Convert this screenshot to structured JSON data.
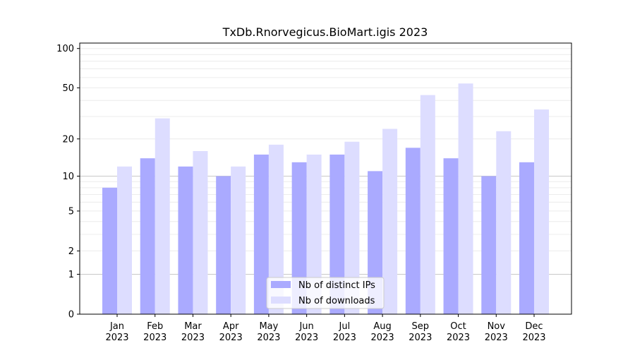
{
  "chart_data": {
    "type": "bar",
    "title": "TxDb.Rnorvegicus.BioMart.igis 2023",
    "categories": [
      [
        "Jan",
        "2023"
      ],
      [
        "Feb",
        "2023"
      ],
      [
        "Mar",
        "2023"
      ],
      [
        "Apr",
        "2023"
      ],
      [
        "May",
        "2023"
      ],
      [
        "Jun",
        "2023"
      ],
      [
        "Jul",
        "2023"
      ],
      [
        "Aug",
        "2023"
      ],
      [
        "Sep",
        "2023"
      ],
      [
        "Oct",
        "2023"
      ],
      [
        "Nov",
        "2023"
      ],
      [
        "Dec",
        "2023"
      ]
    ],
    "series": [
      {
        "name": "Nb of distinct IPs",
        "color": "#aaaaff",
        "values": [
          8,
          14,
          12,
          10,
          15,
          13,
          15,
          11,
          17,
          14,
          10,
          13
        ]
      },
      {
        "name": "Nb of downloads",
        "color": "#ddddff",
        "values": [
          12,
          29,
          16,
          12,
          18,
          15,
          19,
          24,
          44,
          54,
          23,
          34
        ]
      }
    ],
    "y_scale": "log(1+y)",
    "ylim": [
      0,
      110
    ],
    "y_ticks": [
      0,
      1,
      2,
      5,
      10,
      20,
      50,
      100
    ],
    "grid": true,
    "legend_position": "bottom-center"
  }
}
